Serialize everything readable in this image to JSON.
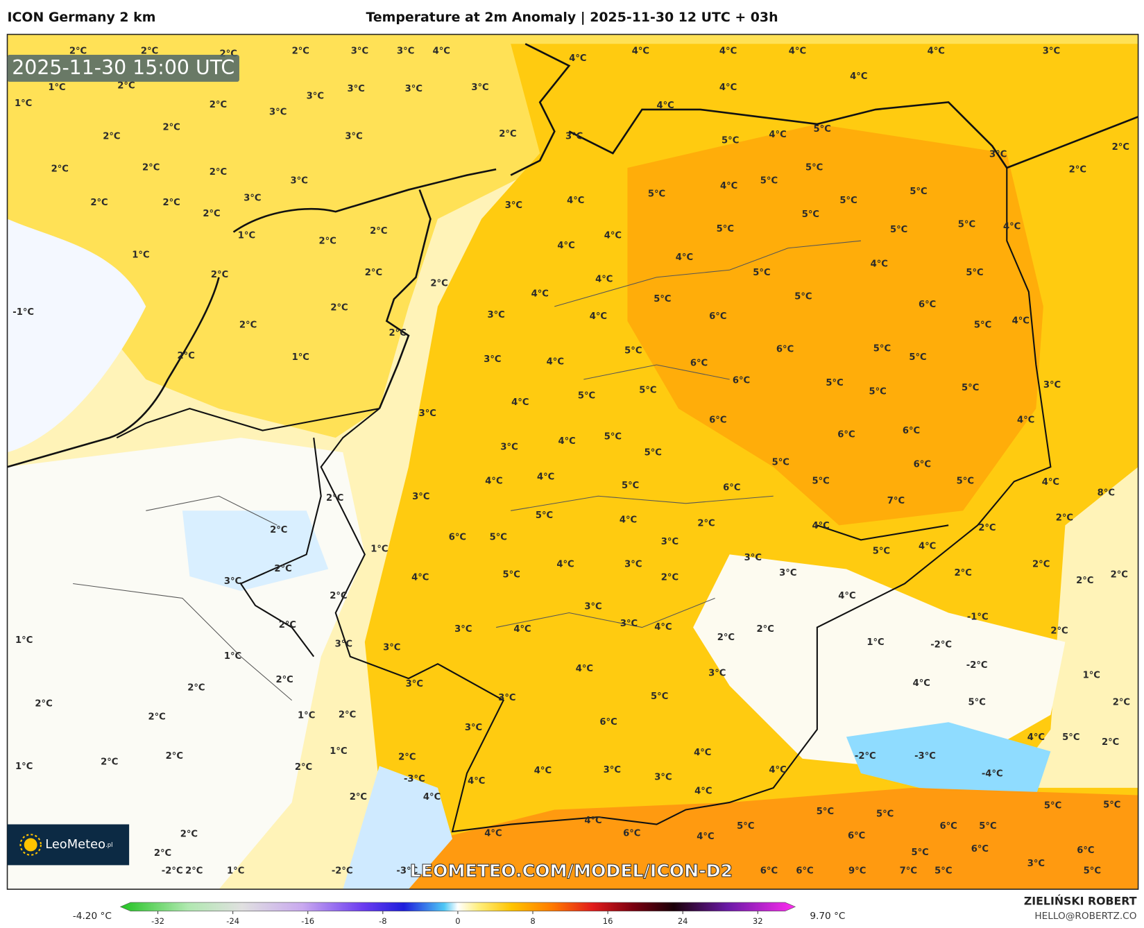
{
  "header": {
    "model": "ICON Germany 2 km",
    "title": "Temperature at 2m Anomaly | 2025-11-30 12 UTC + 03h"
  },
  "timestamp": "2025-11-30 15:00 UTC",
  "watermark": "LEOMETEO.COM/MODEL/ICON-D2",
  "logo": {
    "name": "LeoMeteo",
    "suffix": ".pl"
  },
  "author": {
    "name": "ZIELIŃSKI ROBERT",
    "email": "HELLO@ROBERTZ.CO"
  },
  "colorbar": {
    "min_label": "-4.20 °C",
    "max_label": "9.70 °C",
    "lim": [
      -36,
      36
    ],
    "ticks": [
      -32,
      -24,
      -16,
      -8,
      0,
      8,
      16,
      24,
      32
    ]
  },
  "map_labels": [
    "2°C",
    "2°C",
    "2°C",
    "2°C",
    "3°C",
    "3°C",
    "4°C",
    "1°C",
    "2°C",
    "1°C",
    "3°C",
    "3°C",
    "3°C",
    "3°C",
    "2°C",
    "3°C",
    "2°C",
    "2°C",
    "3°C",
    "2°C",
    "2°C",
    "2°C",
    "2°C",
    "3°C",
    "2°C",
    "2°C",
    "3°C",
    "2°C",
    "1°C",
    "1°C",
    "2°C",
    "2°C",
    "2°C",
    "2°C",
    "2°C",
    "-1°C",
    "2°C",
    "2°C",
    "2°C",
    "2°C",
    "1°C",
    "3°C",
    "3°C",
    "3°C",
    "4°C",
    "4°C",
    "4°C",
    "4°C",
    "4°C",
    "3°C",
    "3°C",
    "4°C",
    "4°C",
    "4°C",
    "4°C",
    "4°C",
    "3°C",
    "4°C",
    "4°C",
    "4°C",
    "5°C",
    "4°C",
    "5°C",
    "3°C",
    "2°C",
    "2°C",
    "4°C",
    "5°C",
    "4°C",
    "5°C",
    "5°C",
    "5°C",
    "5°C",
    "5°C",
    "5°C",
    "5°C",
    "5°C",
    "4°C",
    "4°C",
    "4°C",
    "4°C",
    "5°C",
    "5°C",
    "5°C",
    "5°C",
    "4°C",
    "6°C",
    "6°C",
    "4°C",
    "5°C",
    "5°C",
    "6°C",
    "6°C",
    "5°C",
    "5°C",
    "6°C",
    "5°C",
    "5°C",
    "3°C",
    "5°C",
    "5°C",
    "5°C",
    "6°C",
    "4°C",
    "6°C",
    "6°C",
    "3°C",
    "4°C",
    "5°C",
    "5°C",
    "5°C",
    "6°C",
    "4°C",
    "4°C",
    "5°C",
    "6°C",
    "5°C",
    "5°C",
    "4°C",
    "8°C",
    "3°C",
    "2°C",
    "7°C",
    "5°C",
    "4°C",
    "2°C",
    "4°C",
    "2°C",
    "2°C",
    "6°C",
    "5°C",
    "2°C",
    "1°C",
    "3°C",
    "5°C",
    "4°C",
    "3°C",
    "2°C",
    "4°C",
    "5°C",
    "4°C",
    "3°C",
    "2°C",
    "3°C",
    "3°C",
    "2°C",
    "2°C",
    "2°C",
    "2°C",
    "2°C",
    "4°C",
    "3°C",
    "2°C",
    "3°C",
    "4°C",
    "3°C",
    "4°C",
    "2°C",
    "-1°C",
    "2°C",
    "1°C",
    "3°C",
    "3°C",
    "2°C",
    "1°C",
    "-2°C",
    "1°C",
    "4°C",
    "-2°C",
    "2°C",
    "3°C",
    "3°C",
    "4°C",
    "1°C",
    "2°C",
    "2°C",
    "3°C",
    "5°C",
    "5°C",
    "2°C",
    "1°C",
    "2°C",
    "2°C",
    "3°C",
    "6°C",
    "4°C",
    "5°C",
    "2°C",
    "1°C",
    "2°C",
    "2°C",
    "2°C",
    "4°C",
    "-2°C",
    "-3°C",
    "1°C",
    "2°C",
    "4°C",
    "3°C",
    "4°C",
    "-4°C",
    "-3°C",
    "4°C",
    "3°C",
    "2°C",
    "4°C",
    "4°C",
    "5°C",
    "5°C",
    "5°C",
    "5°C",
    "4°C",
    "5°C",
    "6°C",
    "5°C",
    "2°C",
    "4°C",
    "6°C",
    "4°C",
    "6°C",
    "5°C",
    "6°C",
    "6°C",
    "2°C",
    "-2°C",
    "2°C",
    "1°C",
    "-2°C",
    "-3°C",
    "6°C",
    "6°C",
    "9°C",
    "7°C",
    "5°C",
    "3°C",
    "5°C"
  ]
}
